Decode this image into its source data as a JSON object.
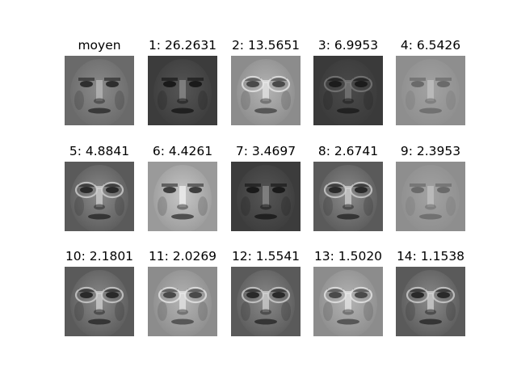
{
  "figure": {
    "panels": [
      {
        "title": "moyen",
        "tone": "mean"
      },
      {
        "title": "1: 26.2631",
        "tone": "dark"
      },
      {
        "title": "2: 13.5651",
        "tone": "light-glasses"
      },
      {
        "title": "3: 6.9953",
        "tone": "dark-glasses"
      },
      {
        "title": "4: 6.5426",
        "tone": "pale"
      },
      {
        "title": "5: 4.8841",
        "tone": "glasses"
      },
      {
        "title": "6: 4.4261",
        "tone": "bright"
      },
      {
        "title": "7: 3.4697",
        "tone": "dark"
      },
      {
        "title": "8: 2.6741",
        "tone": "glasses"
      },
      {
        "title": "9: 2.3953",
        "tone": "pale"
      },
      {
        "title": "10: 2.1801",
        "tone": "glasses"
      },
      {
        "title": "11: 2.0269",
        "tone": "light-glasses"
      },
      {
        "title": "12: 1.5541",
        "tone": "glasses"
      },
      {
        "title": "13: 1.5020",
        "tone": "light-glasses"
      },
      {
        "title": "14: 1.1538",
        "tone": "glasses"
      }
    ]
  }
}
